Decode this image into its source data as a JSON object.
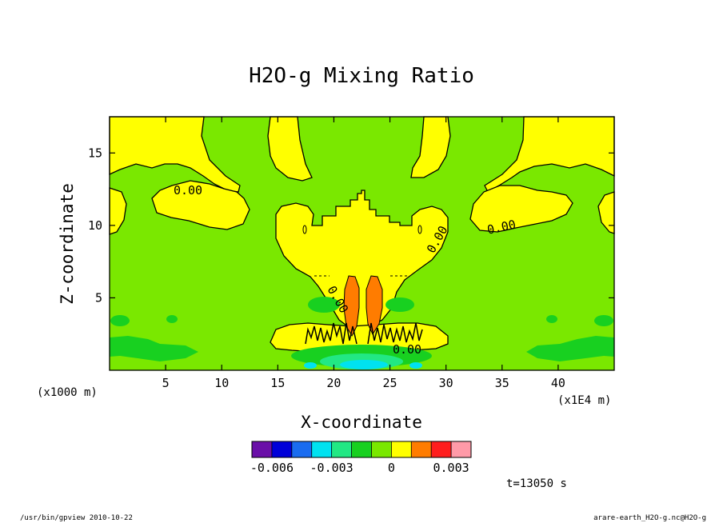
{
  "chart_data": {
    "type": "heatmap",
    "title": "H2O-g Mixing Ratio",
    "xlabel": "X-coordinate",
    "ylabel": "Z-coordinate",
    "x_unit": "(x1E4 m)",
    "y_unit": "(x1000 m)",
    "xlim": [
      0,
      45
    ],
    "ylim": [
      0,
      17.5
    ],
    "x_ticks": [
      5,
      10,
      15,
      20,
      25,
      30,
      35,
      40
    ],
    "y_ticks": [
      5,
      10,
      15
    ],
    "contour_labels": [
      {
        "text": "0.00",
        "x": 7.0,
        "z": 12.5
      },
      {
        "text": "0.00",
        "x": 35.0,
        "z": 9.8
      },
      {
        "text": "0.00",
        "x": 29.3,
        "z": 8.8
      },
      {
        "text": "0.00",
        "x": 20.3,
        "z": 4.8
      },
      {
        "text": "0.00",
        "x": 26.8,
        "z": 1.4
      }
    ],
    "colorbar": {
      "colors": [
        "#6a0fa8",
        "#0000d8",
        "#1a6cf0",
        "#00e2f0",
        "#22e884",
        "#18d020",
        "#7ae800",
        "#ffff00",
        "#ff7c00",
        "#ff1e1e",
        "#ff9aa8"
      ],
      "tick_labels": [
        {
          "text": "-0.006",
          "index": 1
        },
        {
          "text": "-0.003",
          "index": 4
        },
        {
          "text": "0",
          "index": 7
        },
        {
          "text": "0.003",
          "index": 10
        }
      ]
    },
    "time_label": "t=13050 s"
  },
  "footer": {
    "left": "/usr/bin/gpview  2010-10-22",
    "right": "arare-earth_H2O-g.nc@H2O-g"
  }
}
